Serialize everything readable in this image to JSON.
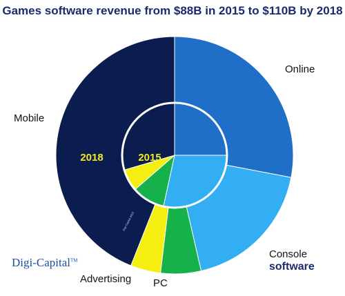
{
  "chart_data": {
    "type": "pie",
    "title": "Games software revenue from $88B in 2015 to $110B by 2018",
    "rings": [
      {
        "name": "2018",
        "label": "2018"
      },
      {
        "name": "2015",
        "label": "2015"
      }
    ],
    "categories": [
      "Online",
      "Console software",
      "PC",
      "Advertising",
      "Mobile"
    ],
    "legend": "labels placed around the chart",
    "slice_colors": [
      "#1f6fc9",
      "#33aef2",
      "#16b14b",
      "#f4ef10",
      "#0b1d4f"
    ],
    "series": [
      {
        "name": "2018",
        "values": [
          28,
          18.4,
          5.5,
          4.1,
          44
        ]
      },
      {
        "name": "2015",
        "values": [
          22,
          25,
          9,
          6,
          26
        ]
      }
    ]
  },
  "labels": {
    "online": "Online",
    "console_line1": "Console",
    "console_line2": "software",
    "pc": "PC",
    "advertising": "Advertising",
    "mobile": "Mobile"
  },
  "brand": {
    "name": "Digi-Capital",
    "mark": "TM",
    "watermark": "Digi-Capital 2015"
  },
  "colors": {
    "title": "#1a2a6c",
    "year_label": "#f5ea1a",
    "ring_border": "#ffffff"
  }
}
